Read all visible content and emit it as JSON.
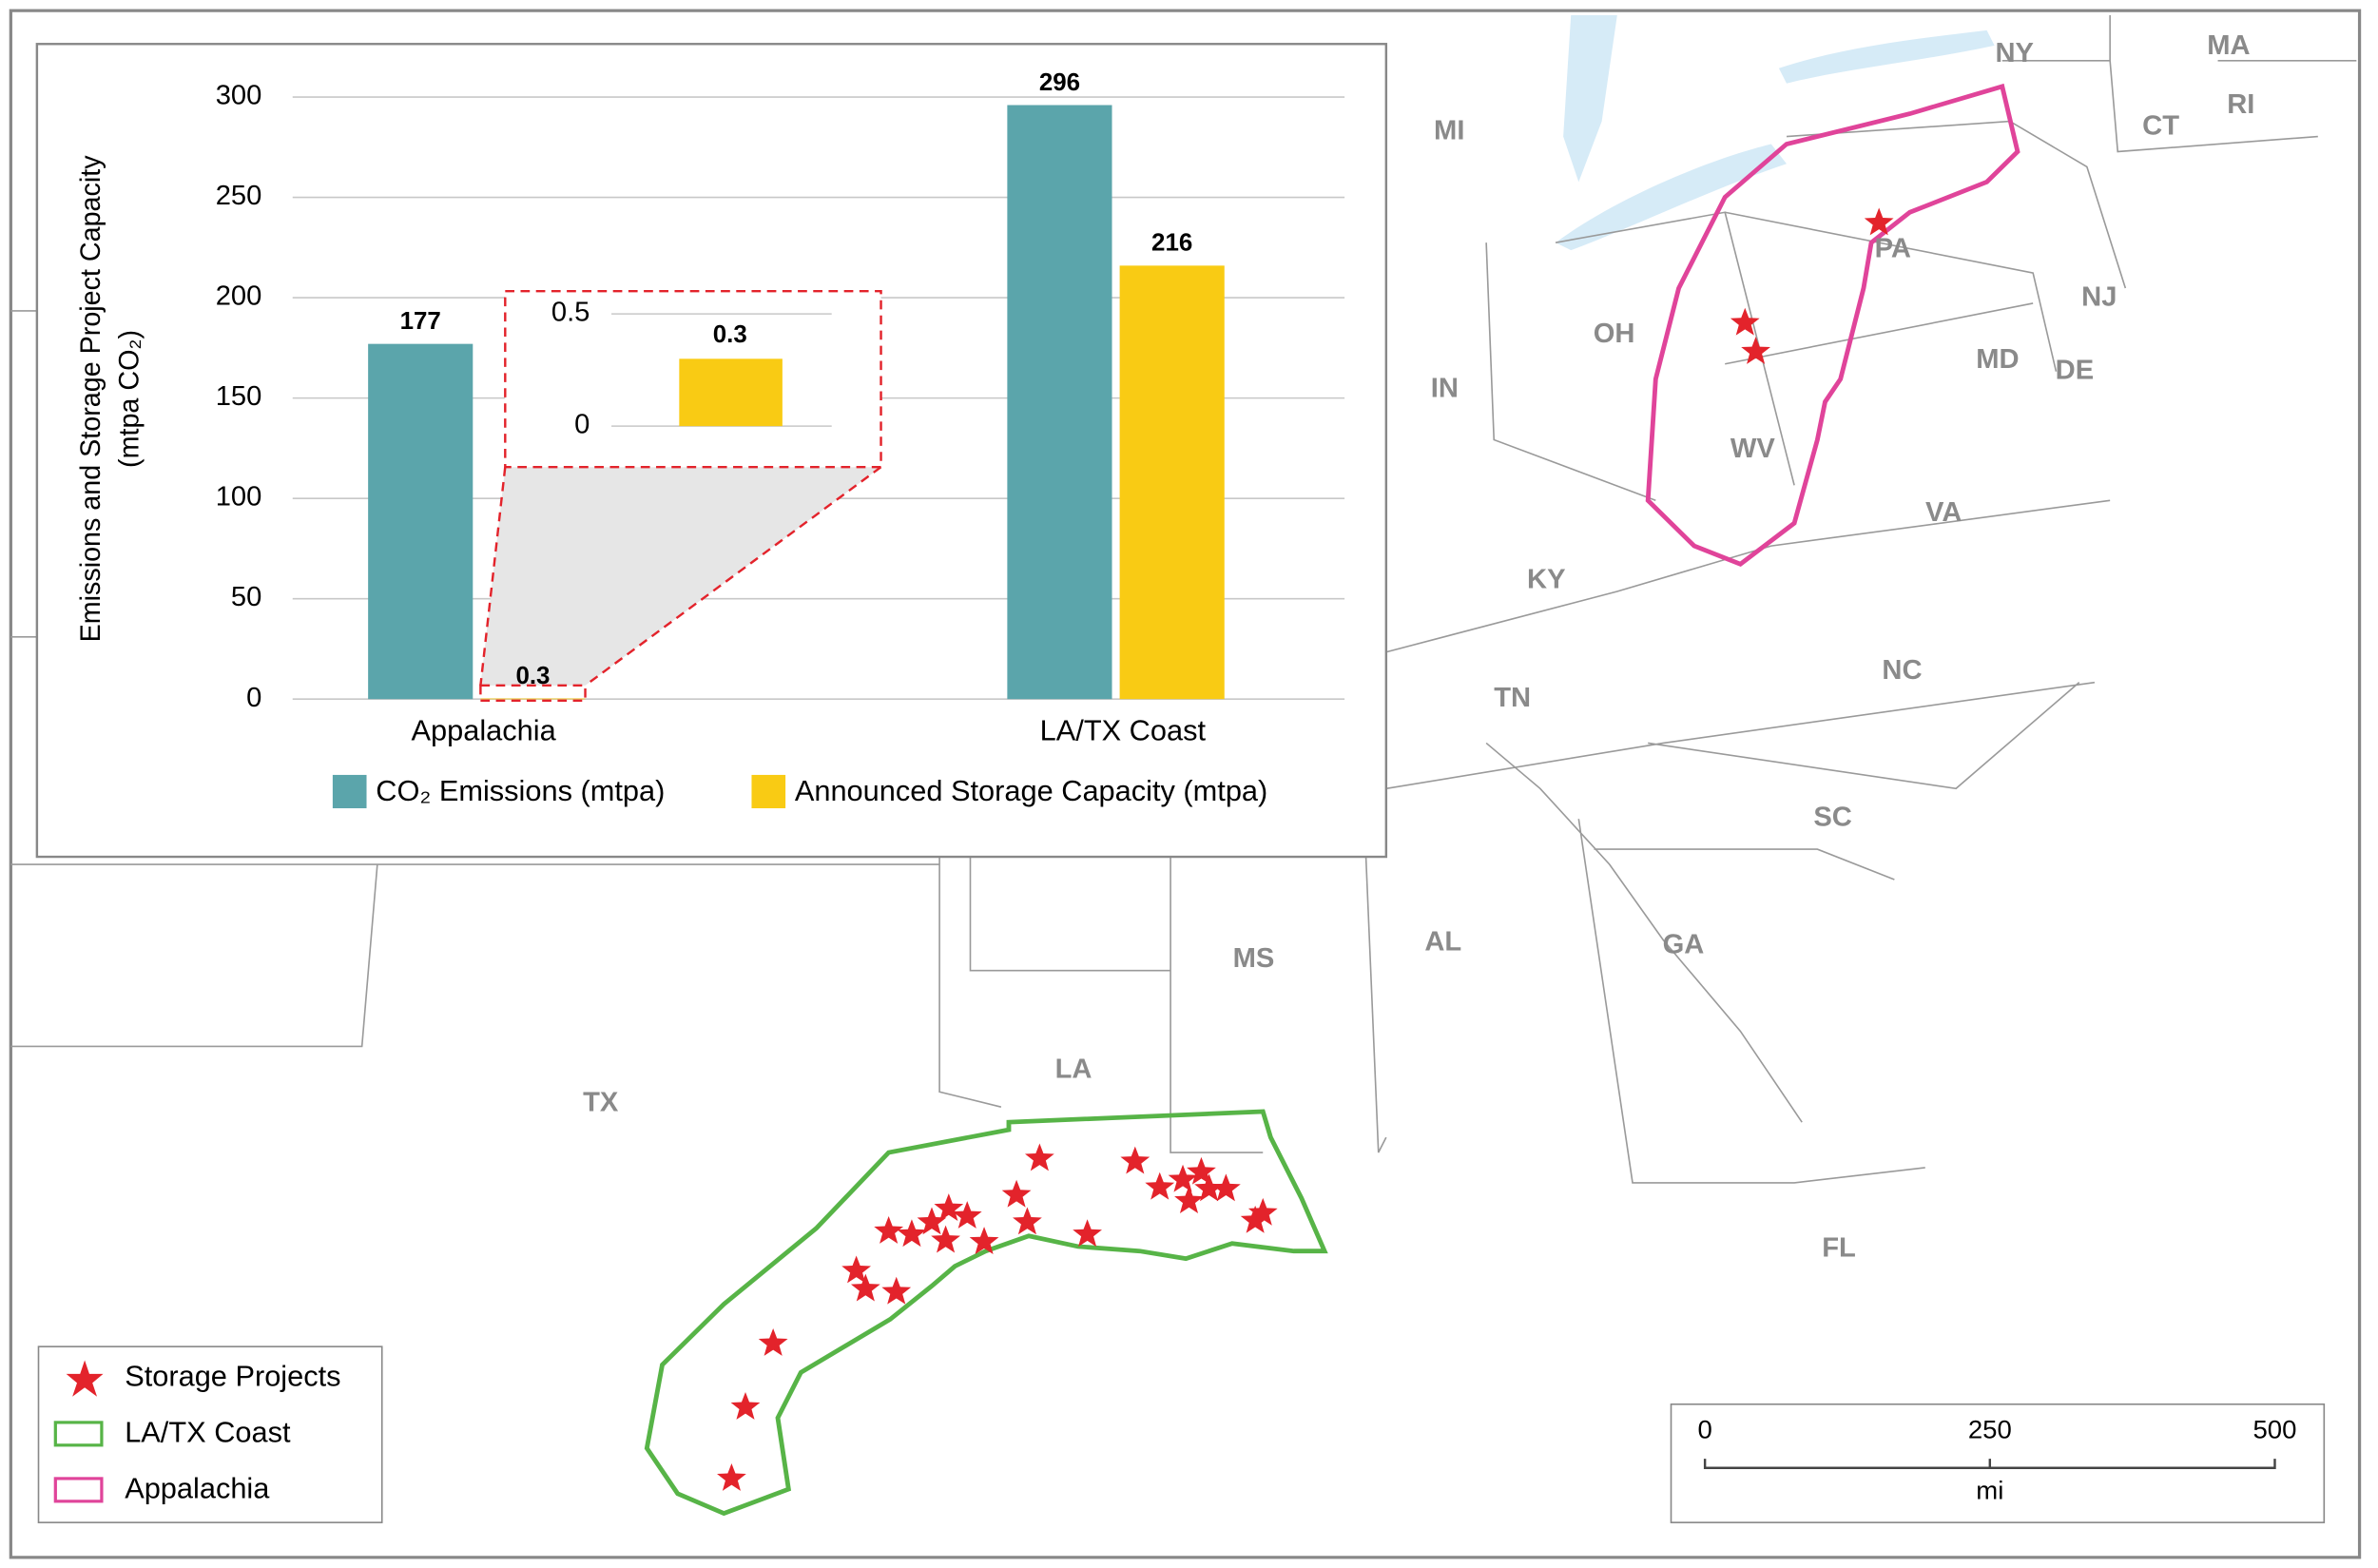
{
  "chart_data": {
    "type": "bar",
    "y_label": [
      "Emissions and Storage Project Capacity",
      "(mtpa CO₂)"
    ],
    "categories": [
      "Appalachia",
      "LA/TX Coast"
    ],
    "series": [
      {
        "name": "CO₂ Emissions (mtpa)",
        "color": "#5ba5ab",
        "values": [
          177,
          296
        ]
      },
      {
        "name": "Announced Storage Capacity (mtpa)",
        "color": "#f9cb14",
        "values": [
          0.3,
          216
        ]
      }
    ],
    "ylim": [
      0,
      300
    ],
    "yticks": [
      0,
      50,
      100,
      150,
      200,
      250,
      300
    ],
    "grid": true,
    "inset": {
      "ylim": [
        0,
        0.5
      ],
      "yticks": [
        0,
        0.5
      ]
    }
  },
  "map": {
    "state_labels": [
      "MI",
      "NY",
      "MA",
      "RI",
      "CT",
      "PA",
      "NJ",
      "OH",
      "IN",
      "MD",
      "DE",
      "WV",
      "VA",
      "KY",
      "TN",
      "NC",
      "SC",
      "AL",
      "GA",
      "MS",
      "LA",
      "TX",
      "FL"
    ],
    "legend": [
      "Storage Projects",
      "LA/TX Coast",
      "Appalachia"
    ],
    "scale_bar": {
      "ticks": [
        "0",
        "250",
        "500"
      ],
      "unit": "mi"
    }
  }
}
